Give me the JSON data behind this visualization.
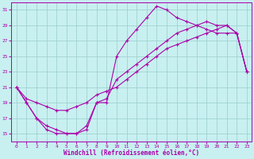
{
  "xlabel": "Windchill (Refroidissement éolien,°C)",
  "bg_color": "#c8f0f0",
  "line_color": "#aa00aa",
  "grid_color": "#99cccc",
  "xlim": [
    -0.5,
    23.5
  ],
  "ylim": [
    14,
    32
  ],
  "yticks": [
    15,
    17,
    19,
    21,
    23,
    25,
    27,
    29,
    31
  ],
  "xticks": [
    0,
    1,
    2,
    3,
    4,
    5,
    6,
    7,
    8,
    9,
    10,
    11,
    12,
    13,
    14,
    15,
    16,
    17,
    18,
    19,
    20,
    21,
    22,
    23
  ],
  "line1_x": [
    0,
    1,
    2,
    3,
    4,
    5,
    6,
    7,
    8,
    9,
    10,
    11,
    12,
    13,
    14,
    15,
    16,
    17,
    18,
    19,
    20,
    21,
    22,
    23
  ],
  "line1_y": [
    21,
    19,
    17,
    16,
    15.5,
    15,
    15,
    15.5,
    19,
    19,
    25,
    27,
    28.5,
    30,
    31.5,
    31,
    30,
    29.5,
    29,
    28.5,
    28,
    28,
    28,
    23
  ],
  "line2_x": [
    0,
    1,
    2,
    3,
    4,
    5,
    6,
    7,
    8,
    9,
    10,
    11,
    12,
    13,
    14,
    15,
    16,
    17,
    18,
    19,
    20,
    21,
    22,
    23
  ],
  "line2_y": [
    21,
    19.5,
    19,
    18.5,
    18,
    18,
    18.5,
    19,
    20,
    20.5,
    21,
    22,
    23,
    24,
    25,
    26,
    26.5,
    27,
    27.5,
    28,
    28.5,
    29,
    28,
    23
  ],
  "line3_x": [
    0,
    1,
    2,
    3,
    4,
    5,
    6,
    7,
    8,
    9,
    10,
    11,
    12,
    13,
    14,
    15,
    16,
    17,
    18,
    19,
    20,
    21,
    22,
    23
  ],
  "line3_y": [
    21,
    19,
    17,
    15.5,
    15,
    15,
    15,
    16,
    19,
    19.5,
    22,
    23,
    24,
    25,
    26,
    27,
    28,
    28.5,
    29,
    29.5,
    29,
    29,
    28,
    23
  ]
}
